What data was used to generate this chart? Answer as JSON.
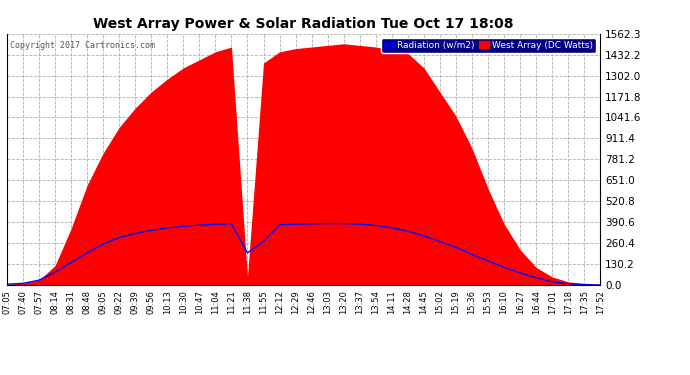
{
  "title": "West Array Power & Solar Radiation Tue Oct 17 18:08",
  "copyright": "Copyright 2017 Cartronics.com",
  "legend_radiation": "Radiation (w/m2)",
  "legend_west": "West Array (DC Watts)",
  "ymax": 1562.3,
  "ymin": 0.0,
  "yticks": [
    0.0,
    130.2,
    260.4,
    390.6,
    520.8,
    651.0,
    781.2,
    911.4,
    1041.6,
    1171.8,
    1302.0,
    1432.2,
    1562.3
  ],
  "background_color": "#ffffff",
  "plot_bg_color": "#ffffff",
  "grid_color": "#b0b0b0",
  "red_fill_color": "#ff0000",
  "blue_line_color": "#0000ff",
  "title_color": "#000000",
  "time_labels": [
    "07:05",
    "07:40",
    "07:57",
    "08:14",
    "08:31",
    "08:48",
    "09:05",
    "09:22",
    "09:39",
    "09:56",
    "10:13",
    "10:30",
    "10:47",
    "11:04",
    "11:21",
    "11:38",
    "11:55",
    "12:12",
    "12:29",
    "12:46",
    "13:03",
    "13:20",
    "13:37",
    "13:54",
    "14:11",
    "14:28",
    "14:45",
    "15:02",
    "15:19",
    "15:36",
    "15:53",
    "16:10",
    "16:27",
    "16:44",
    "17:01",
    "17:18",
    "17:35",
    "17:52"
  ],
  "red_values": [
    5,
    10,
    30,
    120,
    350,
    620,
    820,
    980,
    1100,
    1200,
    1280,
    1350,
    1400,
    1450,
    1480,
    50,
    1380,
    1450,
    1470,
    1480,
    1490,
    1500,
    1490,
    1480,
    1460,
    1440,
    1350,
    1200,
    1050,
    850,
    600,
    380,
    220,
    110,
    50,
    20,
    8,
    3
  ],
  "blue_values": [
    5,
    10,
    30,
    80,
    140,
    200,
    255,
    295,
    320,
    340,
    355,
    365,
    372,
    378,
    380,
    200,
    270,
    375,
    378,
    380,
    382,
    382,
    378,
    370,
    355,
    335,
    305,
    270,
    235,
    190,
    150,
    110,
    75,
    45,
    20,
    8,
    3,
    0
  ]
}
